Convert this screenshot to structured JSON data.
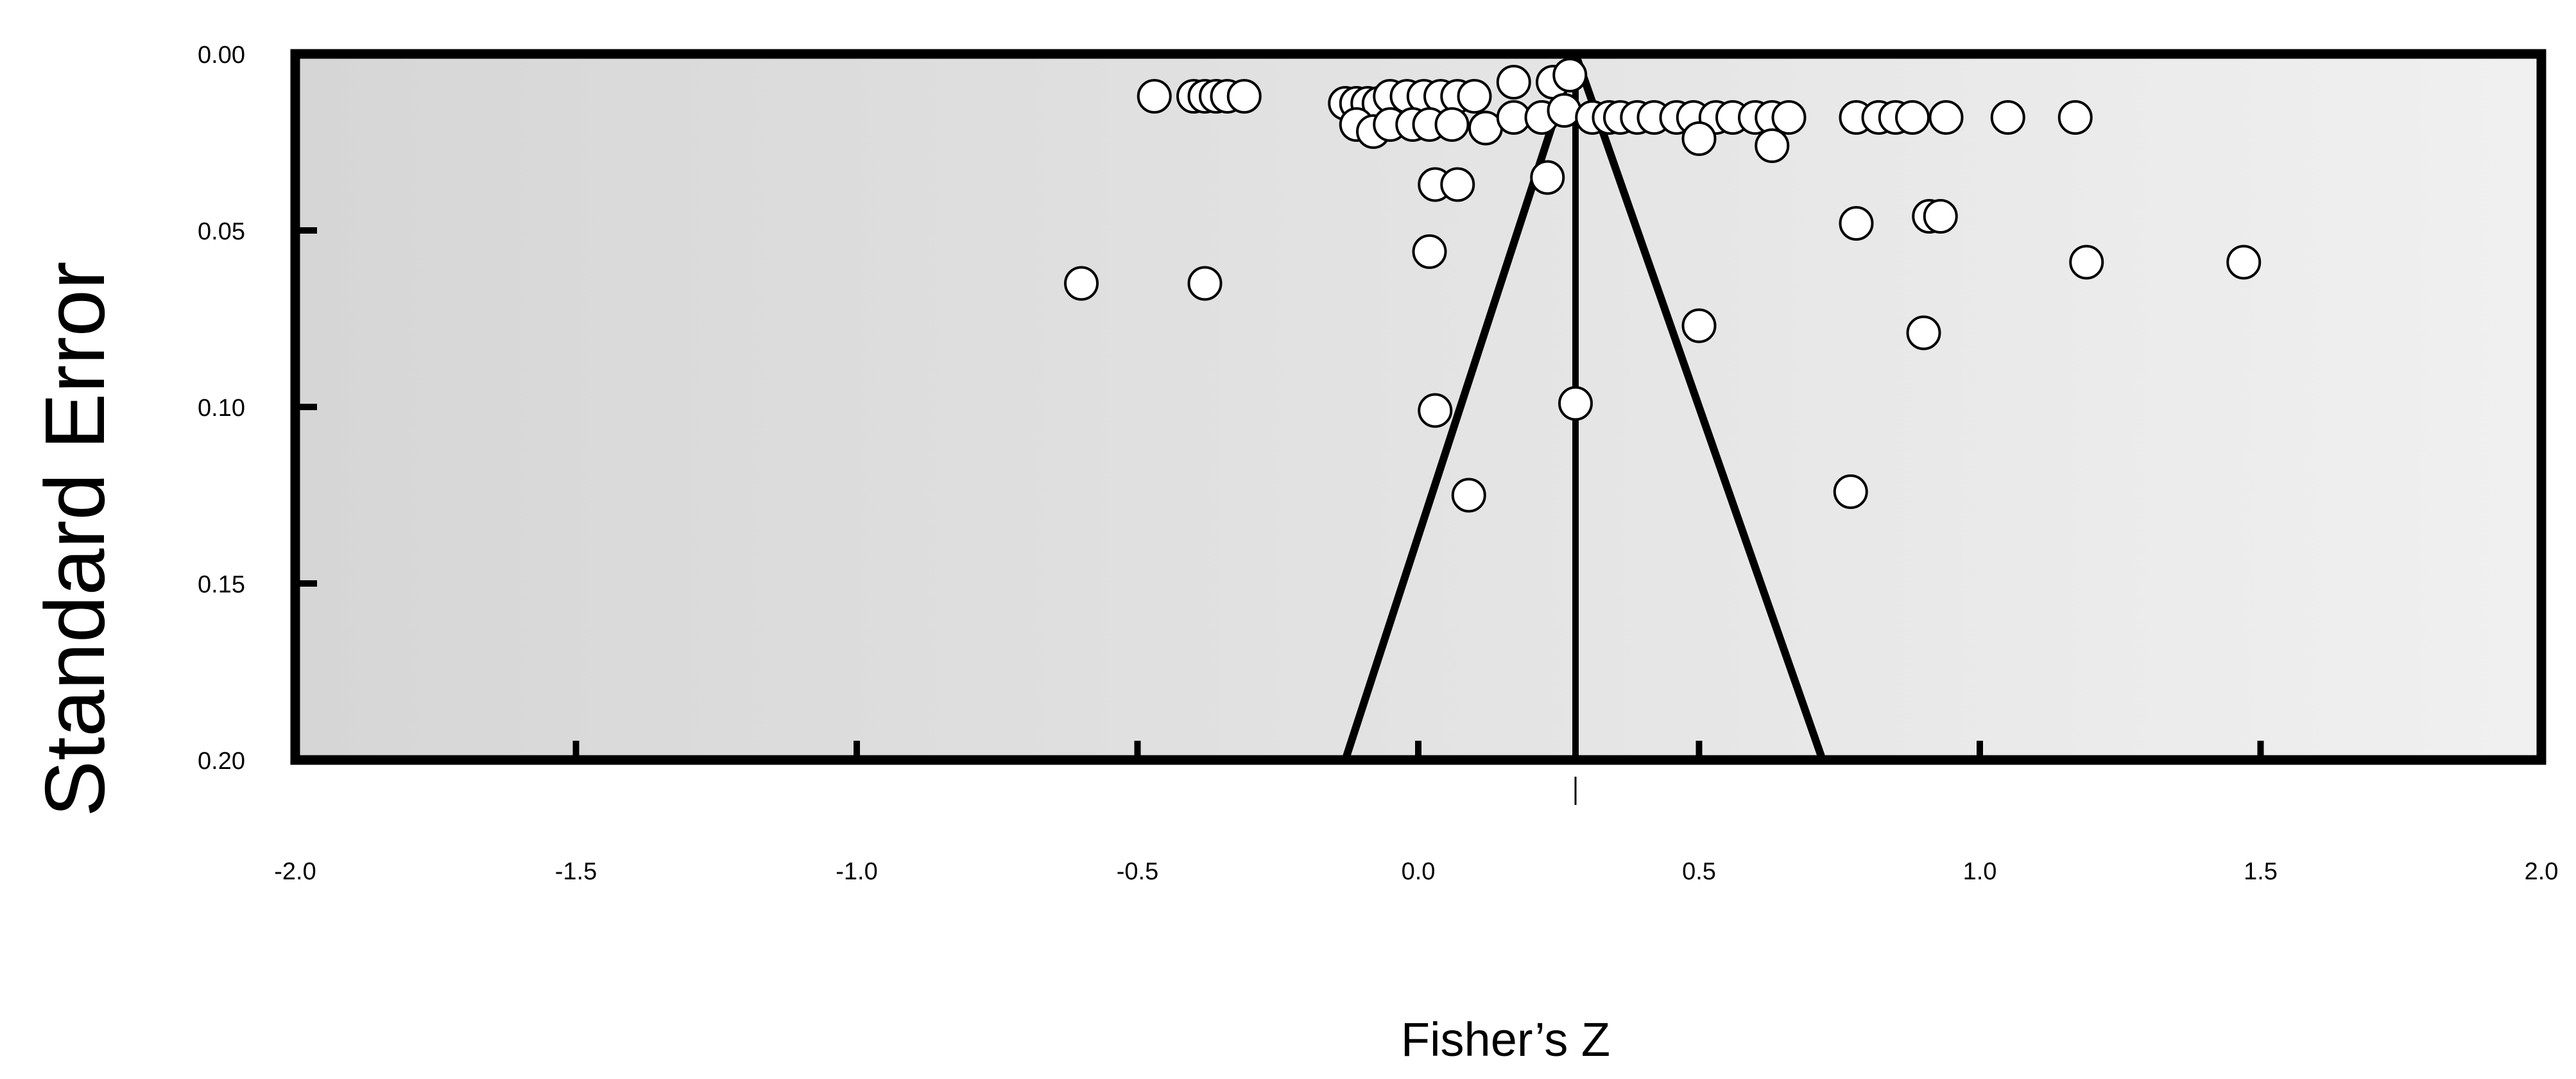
{
  "chart_data": {
    "type": "scatter",
    "plot_kind": "funnel",
    "title": "",
    "xlabel": "Fisher’s Z",
    "ylabel": "Standard Error",
    "xlim": [
      -2.0,
      2.0
    ],
    "ylim": [
      0.0,
      0.2
    ],
    "y_inverted": true,
    "x_ticks": [
      "-2.0",
      "-1.5",
      "-1.0",
      "-0.5",
      "0.0",
      "0.5",
      "1.0",
      "1.5",
      "2.0"
    ],
    "y_ticks": [
      "0.00",
      "0.05",
      "0.10",
      "0.15",
      "0.20"
    ],
    "summary_effect": 0.28,
    "funnel": {
      "apex": [
        0.28,
        0.0
      ],
      "left_base": [
        -0.13,
        0.2
      ],
      "right_base": [
        0.72,
        0.2
      ]
    },
    "grid": false,
    "legend": "none",
    "colors": {
      "background_left": "#d6d6d6",
      "background_right": "#f0f0f0",
      "frame": "#000000",
      "marker_fill": "#ffffff",
      "marker_edge": "#000000"
    },
    "points": [
      {
        "x": -0.47,
        "y": 0.012
      },
      {
        "x": -0.4,
        "y": 0.012
      },
      {
        "x": -0.38,
        "y": 0.012
      },
      {
        "x": -0.36,
        "y": 0.012
      },
      {
        "x": -0.34,
        "y": 0.012
      },
      {
        "x": -0.31,
        "y": 0.012
      },
      {
        "x": -0.13,
        "y": 0.014
      },
      {
        "x": -0.11,
        "y": 0.014
      },
      {
        "x": -0.09,
        "y": 0.014
      },
      {
        "x": -0.07,
        "y": 0.014
      },
      {
        "x": -0.05,
        "y": 0.012
      },
      {
        "x": -0.02,
        "y": 0.012
      },
      {
        "x": 0.01,
        "y": 0.012
      },
      {
        "x": 0.04,
        "y": 0.012
      },
      {
        "x": 0.07,
        "y": 0.012
      },
      {
        "x": 0.1,
        "y": 0.012
      },
      {
        "x": 0.17,
        "y": 0.008
      },
      {
        "x": 0.24,
        "y": 0.008
      },
      {
        "x": 0.27,
        "y": 0.006
      },
      {
        "x": -0.11,
        "y": 0.02
      },
      {
        "x": -0.08,
        "y": 0.022
      },
      {
        "x": -0.05,
        "y": 0.02
      },
      {
        "x": -0.01,
        "y": 0.02
      },
      {
        "x": 0.02,
        "y": 0.02
      },
      {
        "x": 0.06,
        "y": 0.02
      },
      {
        "x": 0.12,
        "y": 0.021
      },
      {
        "x": 0.17,
        "y": 0.018
      },
      {
        "x": 0.22,
        "y": 0.018
      },
      {
        "x": 0.26,
        "y": 0.016
      },
      {
        "x": 0.31,
        "y": 0.018
      },
      {
        "x": 0.34,
        "y": 0.018
      },
      {
        "x": 0.36,
        "y": 0.018
      },
      {
        "x": 0.39,
        "y": 0.018
      },
      {
        "x": 0.42,
        "y": 0.018
      },
      {
        "x": 0.46,
        "y": 0.018
      },
      {
        "x": 0.49,
        "y": 0.018
      },
      {
        "x": 0.53,
        "y": 0.018
      },
      {
        "x": 0.56,
        "y": 0.018
      },
      {
        "x": 0.6,
        "y": 0.018
      },
      {
        "x": 0.63,
        "y": 0.018
      },
      {
        "x": 0.66,
        "y": 0.018
      },
      {
        "x": 0.5,
        "y": 0.024
      },
      {
        "x": 0.63,
        "y": 0.026
      },
      {
        "x": 0.78,
        "y": 0.018
      },
      {
        "x": 0.82,
        "y": 0.018
      },
      {
        "x": 0.85,
        "y": 0.018
      },
      {
        "x": 0.88,
        "y": 0.018
      },
      {
        "x": 0.94,
        "y": 0.018
      },
      {
        "x": 1.05,
        "y": 0.018
      },
      {
        "x": 1.17,
        "y": 0.018
      },
      {
        "x": 0.03,
        "y": 0.037
      },
      {
        "x": 0.07,
        "y": 0.037
      },
      {
        "x": 0.23,
        "y": 0.035
      },
      {
        "x": 0.78,
        "y": 0.048
      },
      {
        "x": 0.91,
        "y": 0.046
      },
      {
        "x": 0.93,
        "y": 0.046
      },
      {
        "x": 0.02,
        "y": 0.056
      },
      {
        "x": 1.19,
        "y": 0.059
      },
      {
        "x": 1.47,
        "y": 0.059
      },
      {
        "x": -0.6,
        "y": 0.065
      },
      {
        "x": -0.38,
        "y": 0.065
      },
      {
        "x": 0.5,
        "y": 0.077
      },
      {
        "x": 0.9,
        "y": 0.079
      },
      {
        "x": 0.03,
        "y": 0.101
      },
      {
        "x": 0.28,
        "y": 0.099
      },
      {
        "x": 0.09,
        "y": 0.125
      },
      {
        "x": 0.77,
        "y": 0.124
      }
    ]
  }
}
